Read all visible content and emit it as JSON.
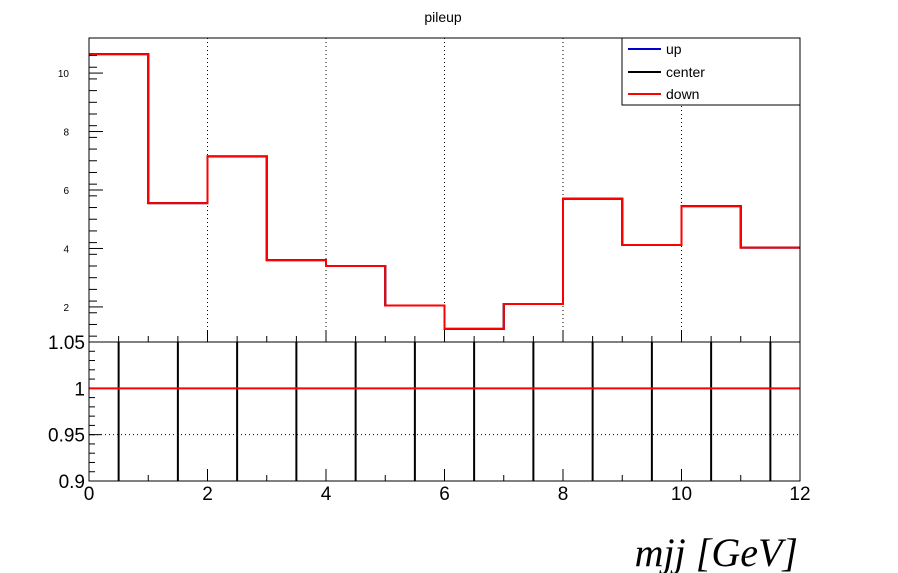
{
  "chart_data": [
    {
      "type": "line",
      "title": "pileup",
      "x_edges": [
        0,
        1,
        2,
        3,
        4,
        5,
        6,
        7,
        8,
        9,
        10,
        11,
        12
      ],
      "xlim": [
        0,
        12
      ],
      "ylim": [
        0.8,
        11.2
      ],
      "yticks": [
        2,
        4,
        6,
        8,
        10
      ],
      "xgrid": [
        2,
        4,
        6,
        8,
        10
      ],
      "grid": true,
      "legend": {
        "position": "top-right",
        "entries": [
          "up",
          "center",
          "down"
        ]
      },
      "series": [
        {
          "name": "up",
          "color": "#0000cc",
          "values": [
            10.65,
            5.55,
            7.15,
            3.6,
            3.4,
            2.05,
            1.25,
            2.1,
            5.7,
            4.12,
            5.45,
            4.03
          ]
        },
        {
          "name": "center",
          "color": "#000000",
          "values": [
            10.65,
            5.55,
            7.15,
            3.6,
            3.4,
            2.05,
            1.25,
            2.1,
            5.7,
            4.12,
            5.45,
            4.03
          ]
        },
        {
          "name": "down",
          "color": "#ff0000",
          "values": [
            10.65,
            5.55,
            7.15,
            3.6,
            3.4,
            2.05,
            1.25,
            2.1,
            5.7,
            4.12,
            5.45,
            4.03
          ]
        }
      ]
    },
    {
      "type": "line",
      "xlim": [
        0,
        12
      ],
      "ylim": [
        0.9,
        1.05
      ],
      "yticks": [
        "0.9",
        "0.95",
        "1",
        "1.05"
      ],
      "xticks": [
        "0",
        "2",
        "4",
        "6",
        "8",
        "10",
        "12"
      ],
      "xlabel": "mjj [GeV]",
      "ygrid": [
        0.95
      ],
      "grid": true,
      "bin_centers": [
        0.5,
        1.5,
        2.5,
        3.5,
        4.5,
        5.5,
        6.5,
        7.5,
        8.5,
        9.5,
        10.5,
        11.5
      ],
      "ratio_value": 1,
      "ratio_color": "#ff0000",
      "errorbar_color": "#000000"
    }
  ]
}
